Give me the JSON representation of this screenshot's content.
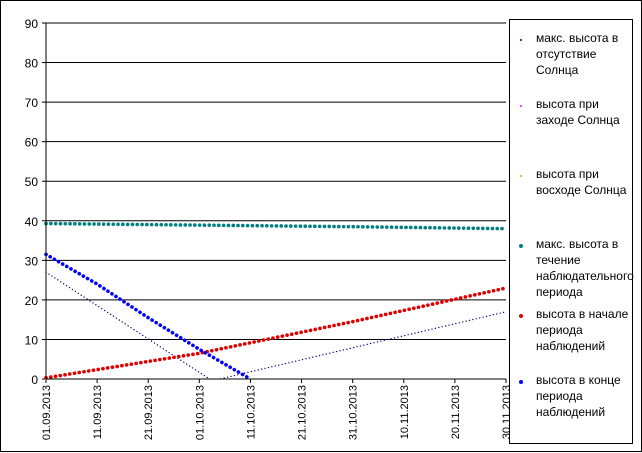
{
  "chart_data": {
    "type": "line",
    "xlabel": "",
    "ylabel": "",
    "ylim": [
      0,
      90
    ],
    "yticks": [
      0,
      10,
      20,
      30,
      40,
      50,
      60,
      70,
      80,
      90
    ],
    "x_tick_labels": [
      "01.09.2013",
      "11.09.2013",
      "21.09.2013",
      "01.10.2013",
      "11.10.2013",
      "21.10.2013",
      "31.10.2013",
      "10.11.2013",
      "20.11.2013",
      "30.11.2013"
    ],
    "x_range_days": [
      0,
      90
    ],
    "grid": "horizontal",
    "legend_position": "right",
    "series": [
      {
        "name": "макс. высота в отсутствие Солнца",
        "color": "#000080",
        "style": "dotted-thin",
        "x": [
          0,
          32,
          34,
          90
        ],
        "y": [
          27,
          0,
          0,
          17
        ]
      },
      {
        "name": "высота при заходе Солнца",
        "color": "#ff00ff",
        "style": "dotted-thin",
        "x": [],
        "y": []
      },
      {
        "name": "высота при восходе Солнца",
        "color": "#c4b000",
        "style": "dotted-thin",
        "x": [],
        "y": []
      },
      {
        "name": "макс. высота в течение наблюдательного периода",
        "color": "#008080",
        "style": "dotted-bold",
        "x": [
          0,
          30,
          60,
          90
        ],
        "y": [
          39.3,
          38.9,
          38.5,
          38
        ]
      },
      {
        "name": "высота в начале периода наблюдений",
        "color": "#e00000",
        "style": "dotted-bold",
        "x": [
          0,
          30,
          60,
          90
        ],
        "y": [
          0.3,
          6.5,
          14.5,
          23
        ]
      },
      {
        "name": "высота в конце периода наблюдений",
        "color": "#0000ff",
        "style": "dotted-bold",
        "x": [
          0,
          10,
          20,
          30,
          40
        ],
        "y": [
          31.5,
          24,
          15.5,
          7.5,
          0
        ]
      }
    ]
  }
}
